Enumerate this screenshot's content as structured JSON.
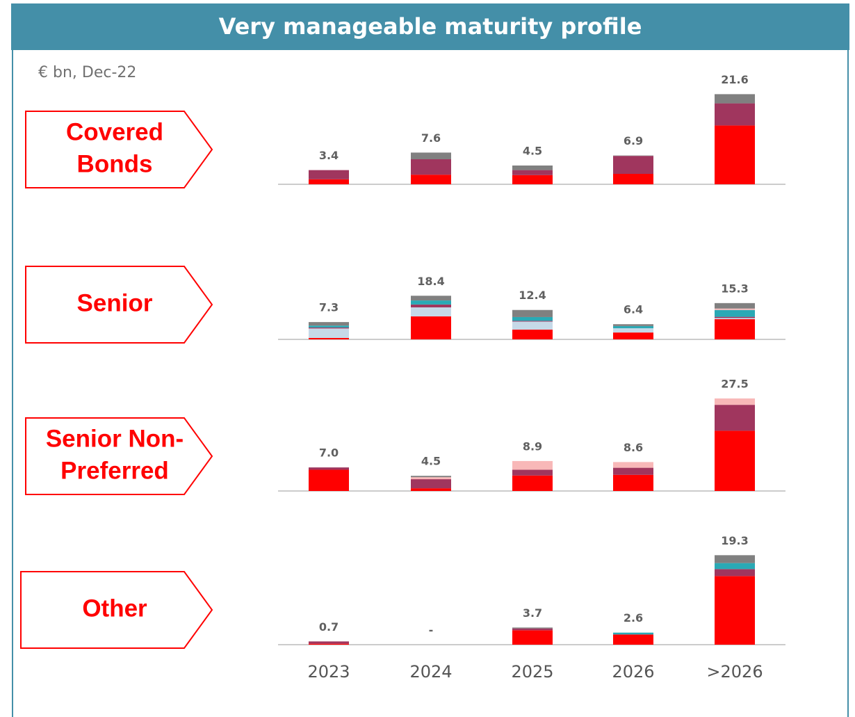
{
  "chart_data": {
    "type": "bar",
    "title": "Very manageable maturity profile",
    "subtitle": "€ bn, Dec-22",
    "categories": [
      "2023",
      "2024",
      "2025",
      "2026",
      ">2026"
    ],
    "panels": [
      {
        "label": [
          "Covered",
          "Bonds"
        ],
        "ylim": [
          0,
          25
        ],
        "totals": [
          3.4,
          7.6,
          4.5,
          6.9,
          21.6
        ],
        "value_labels": [
          "3.4",
          "7.6",
          "4.5",
          "6.9",
          "21.6"
        ],
        "series": [
          {
            "color": "#ff0000",
            "values": [
              1.2,
              2.3,
              2.2,
              2.5,
              14.1
            ]
          },
          {
            "color": "#c6d9e8",
            "values": [
              0,
              0,
              0,
              0,
              0
            ]
          },
          {
            "color": "#a0365e",
            "values": [
              2.2,
              3.7,
              1.2,
              4.3,
              5.3
            ]
          },
          {
            "color": "#2aa9b5",
            "values": [
              0,
              0,
              0,
              0,
              0
            ]
          },
          {
            "color": "#f8b8b8",
            "values": [
              0,
              0,
              0,
              0,
              0
            ]
          },
          {
            "color": "#808080",
            "values": [
              0,
              1.6,
              1.1,
              0.1,
              2.2
            ]
          }
        ]
      },
      {
        "label": [
          "Senior"
        ],
        "ylim": [
          0,
          44
        ],
        "totals": [
          7.3,
          18.4,
          12.4,
          6.4,
          15.3
        ],
        "value_labels": [
          "7.3",
          "18.4",
          "12.4",
          "6.4",
          "15.3"
        ],
        "series": [
          {
            "color": "#ff0000",
            "values": [
              0.6,
              9.7,
              4.1,
              2.9,
              8.5
            ]
          },
          {
            "color": "#c6d9e8",
            "values": [
              4.0,
              3.8,
              3.4,
              1.8,
              0.5
            ]
          },
          {
            "color": "#a0365e",
            "values": [
              0.4,
              1.2,
              0.3,
              0,
              0.5
            ]
          },
          {
            "color": "#2aa9b5",
            "values": [
              0.8,
              1.7,
              1.6,
              0.9,
              2.9
            ]
          },
          {
            "color": "#f8b8b8",
            "values": [
              0,
              0,
              0,
              0,
              0.6
            ]
          },
          {
            "color": "#808080",
            "values": [
              1.5,
              2.0,
              3.0,
              0.8,
              2.3
            ]
          }
        ]
      },
      {
        "label": [
          "Senior Non-",
          "Preferred"
        ],
        "ylim": [
          0,
          31
        ],
        "totals": [
          7.0,
          4.5,
          8.9,
          8.6,
          27.5
        ],
        "value_labels": [
          "7.0",
          "4.5",
          "8.9",
          "8.6",
          "27.5"
        ],
        "series": [
          {
            "color": "#ff0000",
            "values": [
              6.3,
              0.8,
              4.6,
              4.8,
              17.9
            ]
          },
          {
            "color": "#c6d9e8",
            "values": [
              0,
              0,
              0,
              0,
              0
            ]
          },
          {
            "color": "#a0365e",
            "values": [
              0.7,
              2.7,
              1.7,
              2.1,
              7.7
            ]
          },
          {
            "color": "#2aa9b5",
            "values": [
              0,
              0,
              0,
              0,
              0
            ]
          },
          {
            "color": "#f8b8b8",
            "values": [
              0,
              0.6,
              2.6,
              1.7,
              1.9
            ]
          },
          {
            "color": "#808080",
            "values": [
              0,
              0.4,
              0,
              0,
              0
            ]
          }
        ]
      },
      {
        "label": [
          "Other"
        ],
        "ylim": [
          0,
          22.5
        ],
        "totals": [
          0.7,
          0,
          3.7,
          2.6,
          19.3
        ],
        "value_labels": [
          "0.7",
          "-",
          "3.7",
          "2.6",
          "19.3"
        ],
        "series": [
          {
            "color": "#ff0000",
            "values": [
              0.2,
              0,
              3.1,
              2.2,
              14.8
            ]
          },
          {
            "color": "#c6d9e8",
            "values": [
              0,
              0,
              0,
              0,
              0
            ]
          },
          {
            "color": "#a0365e",
            "values": [
              0.5,
              0,
              0.4,
              0,
              1.5
            ]
          },
          {
            "color": "#2aa9b5",
            "values": [
              0,
              0,
              0,
              0.4,
              1.3
            ]
          },
          {
            "color": "#f8b8b8",
            "values": [
              0,
              0,
              0,
              0,
              0
            ]
          },
          {
            "color": "#808080",
            "values": [
              0,
              0,
              0.2,
              0,
              1.7
            ]
          }
        ]
      }
    ]
  }
}
